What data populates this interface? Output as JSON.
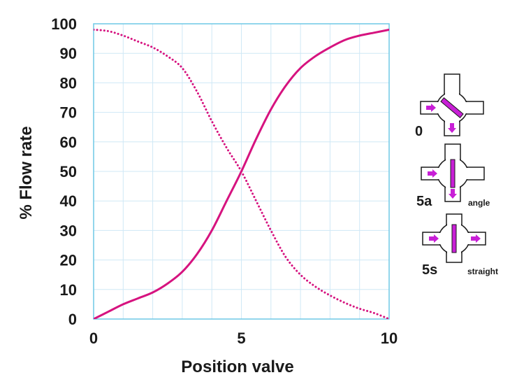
{
  "chart_data": {
    "type": "line",
    "xlabel": "Position valve",
    "ylabel": "% Flow rate",
    "xlim": [
      0,
      10
    ],
    "ylim": [
      0,
      100
    ],
    "x_ticks": [
      "0",
      "5",
      "10"
    ],
    "y_ticks": [
      "0",
      "10",
      "20",
      "30",
      "40",
      "50",
      "60",
      "70",
      "80",
      "90",
      "100"
    ],
    "grid": true,
    "colors": {
      "series": "#d6137f",
      "grid": "#cfe8f6",
      "frame": "#6ec8e6",
      "arrow": "#c81fd6"
    },
    "series": [
      {
        "style": "solid",
        "x": [
          0,
          0.5,
          1,
          1.5,
          2,
          2.5,
          3,
          3.5,
          4,
          4.5,
          5,
          5.5,
          6,
          6.5,
          7,
          7.5,
          8,
          8.5,
          9,
          9.5,
          10
        ],
        "y": [
          0,
          2.5,
          5,
          7,
          9,
          12,
          16,
          22,
          30,
          40,
          50,
          61,
          71,
          79,
          85,
          89,
          92,
          94.5,
          96,
          97,
          98
        ]
      },
      {
        "style": "dotted",
        "x": [
          0,
          0.5,
          1,
          1.5,
          2,
          2.5,
          3,
          3.5,
          4,
          4.5,
          5,
          5.5,
          6,
          6.5,
          7,
          7.5,
          8,
          8.5,
          9,
          9.5,
          10
        ],
        "y": [
          98,
          97.5,
          96,
          94,
          92,
          89,
          85,
          77,
          67,
          58,
          50,
          40,
          30,
          21,
          15,
          11,
          8,
          5.5,
          3.5,
          2,
          0
        ]
      }
    ]
  },
  "valves": [
    {
      "label": "0",
      "sub": "",
      "icon": "valve-position-0-icon"
    },
    {
      "label": "5a",
      "sub": "angle",
      "icon": "valve-position-5a-icon"
    },
    {
      "label": "5s",
      "sub": "straight",
      "icon": "valve-position-5s-icon"
    }
  ]
}
